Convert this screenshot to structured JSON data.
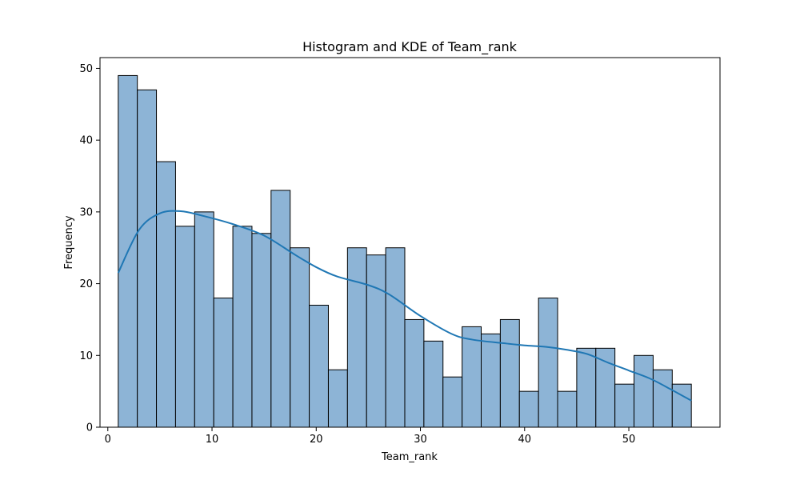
{
  "chart_data": {
    "type": "bar",
    "subtype": "histogram-with-kde",
    "title": "Histogram and KDE of Team_rank",
    "xlabel": "Team_rank",
    "ylabel": "Frequency",
    "xlim": [
      -0.75,
      58.75
    ],
    "ylim": [
      0,
      51.5
    ],
    "x_ticks": [
      0,
      10,
      20,
      30,
      40,
      50
    ],
    "y_ticks": [
      0,
      10,
      20,
      30,
      40,
      50
    ],
    "grid": false,
    "legend": "none",
    "bin_range": [
      1,
      56
    ],
    "bin_count": 30,
    "values": [
      49,
      47,
      37,
      28,
      30,
      18,
      28,
      27,
      33,
      25,
      17,
      8,
      25,
      24,
      25,
      15,
      12,
      7,
      14,
      13,
      15,
      5,
      18,
      5,
      11,
      11,
      6,
      10,
      8,
      6
    ],
    "kde": {
      "x": [
        1,
        3,
        5,
        7,
        9,
        12,
        15,
        18,
        20,
        22,
        25,
        27,
        30,
        33,
        35,
        38,
        40,
        42,
        44,
        46,
        48,
        50,
        52,
        54,
        56
      ],
      "y": [
        21.5,
        27.5,
        29.8,
        30.1,
        29.5,
        28.3,
        26.7,
        24.0,
        22.3,
        21.0,
        19.8,
        18.5,
        15.5,
        13.0,
        12.2,
        11.7,
        11.4,
        11.2,
        10.8,
        10.2,
        9.0,
        7.9,
        6.8,
        5.3,
        3.7
      ]
    },
    "colors": {
      "bar_fill": "#8db4d6",
      "bar_edge": "#000000",
      "kde_line": "#1f77b4"
    }
  }
}
